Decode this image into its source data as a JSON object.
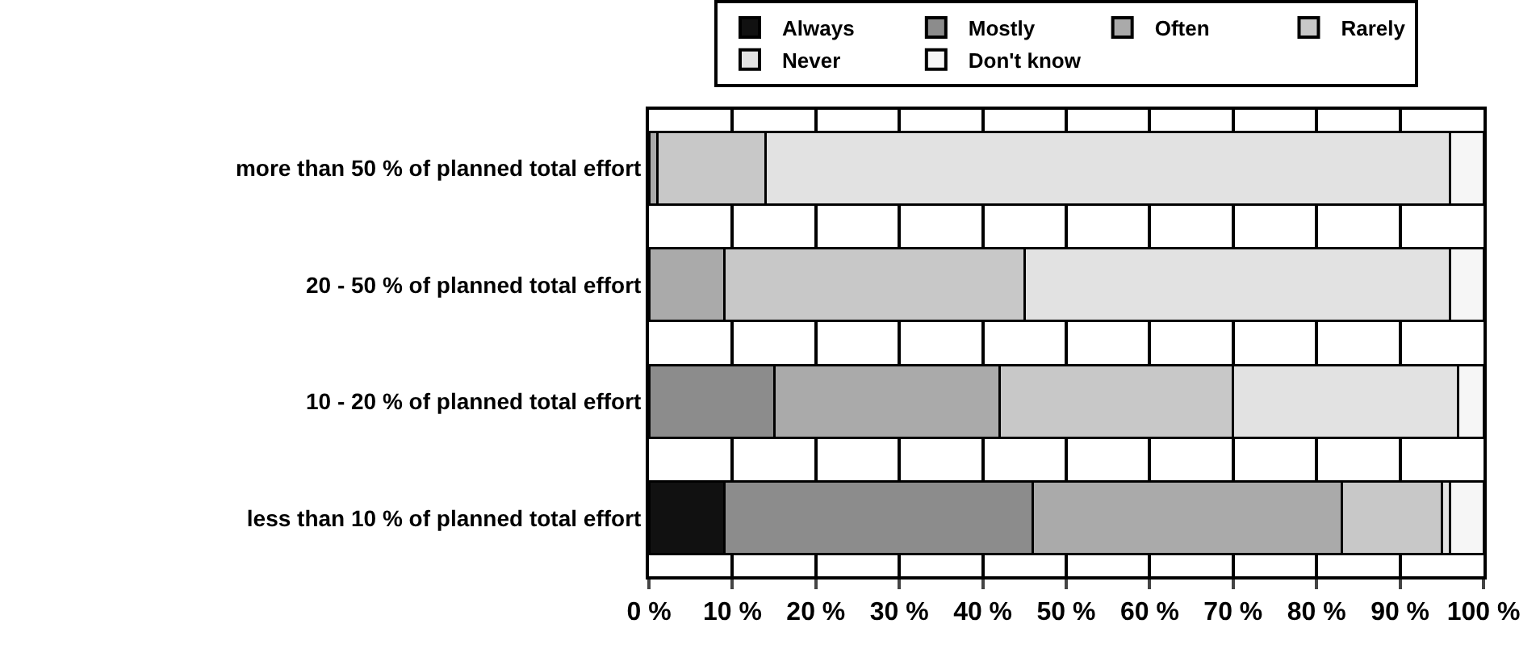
{
  "chart_data": {
    "type": "bar",
    "orientation": "horizontal",
    "stacked": true,
    "categories": [
      "more than 50 % of planned total effort",
      "20 - 50 % of planned total effort",
      "10 - 20 % of planned total effort",
      "less than 10 % of planned total effort"
    ],
    "series": [
      {
        "name": "Always",
        "color": "#111111",
        "values": [
          0,
          0,
          0,
          9
        ]
      },
      {
        "name": "Mostly",
        "color": "#8c8c8c",
        "values": [
          0,
          0,
          15,
          37
        ]
      },
      {
        "name": "Often",
        "color": "#aaaaaa",
        "values": [
          1,
          9,
          27,
          37
        ]
      },
      {
        "name": "Rarely",
        "color": "#c8c8c8",
        "values": [
          13,
          36,
          28,
          12
        ]
      },
      {
        "name": "Never",
        "color": "#e2e2e2",
        "values": [
          82,
          51,
          27,
          1
        ]
      },
      {
        "name": "Don't know",
        "color": "#f6f6f6",
        "values": [
          4,
          4,
          3,
          4
        ]
      }
    ],
    "xlim": [
      0,
      100
    ],
    "xticks": [
      {
        "value": 0,
        "label": "0 %"
      },
      {
        "value": 10,
        "label": "10 %"
      },
      {
        "value": 20,
        "label": "20 %"
      },
      {
        "value": 30,
        "label": "30 %"
      },
      {
        "value": 40,
        "label": "40 %"
      },
      {
        "value": 50,
        "label": "50 %"
      },
      {
        "value": 60,
        "label": "60 %"
      },
      {
        "value": 70,
        "label": "70 %"
      },
      {
        "value": 80,
        "label": "80 %"
      },
      {
        "value": 90,
        "label": "90 %"
      },
      {
        "value": 100,
        "label": "100 %"
      }
    ],
    "grid": "x",
    "legend": "top"
  }
}
